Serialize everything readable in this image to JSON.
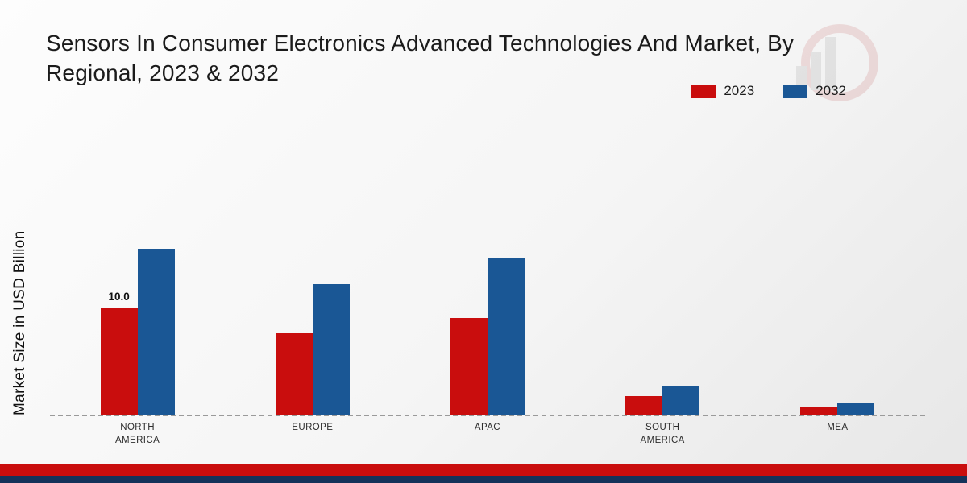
{
  "chart_data": {
    "type": "bar",
    "title": "Sensors In Consumer Electronics Advanced Technologies And Market, By Regional, 2023 & 2032",
    "ylabel": "Market Size in USD Billion",
    "xlabel": "",
    "categories": [
      "NORTH AMERICA",
      "EUROPE",
      "APAC",
      "SOUTH AMERICA",
      "MEA"
    ],
    "series": [
      {
        "name": "2023",
        "color": "#c90d0d",
        "values": [
          10.0,
          7.6,
          9.0,
          1.7,
          0.7
        ]
      },
      {
        "name": "2032",
        "color": "#1a5795",
        "values": [
          15.5,
          12.2,
          14.6,
          2.7,
          1.1
        ]
      }
    ],
    "annotations": [
      {
        "category_index": 0,
        "series_index": 0,
        "text": "10.0"
      }
    ],
    "ylim": [
      0,
      18
    ],
    "grid": "dashed baseline only",
    "legend_position": "top-right"
  },
  "footer": {
    "red_band_color": "#c90d0d",
    "navy_band_color": "#14325a"
  },
  "watermark": {
    "name": "brand-logo-watermark"
  }
}
